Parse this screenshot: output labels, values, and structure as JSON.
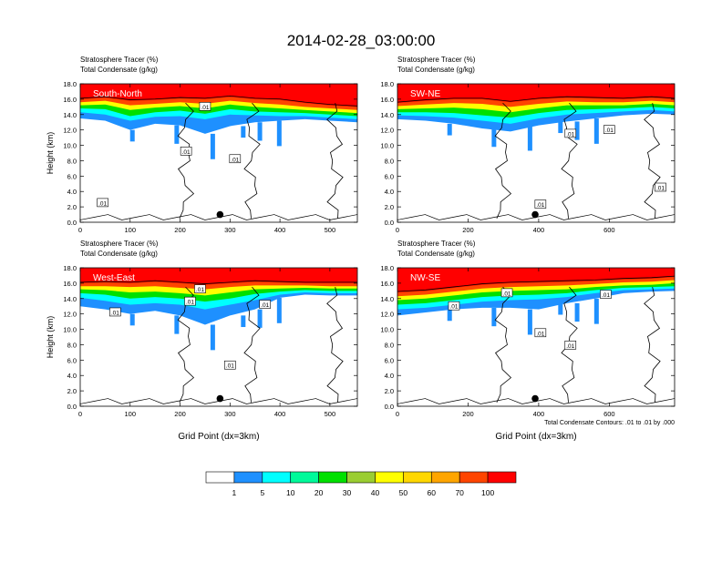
{
  "title": "2014-02-28_03:00:00",
  "colors": {
    "palette": [
      "#ffffff",
      "#1e90ff",
      "#00ffff",
      "#00fa9a",
      "#00e000",
      "#9acd32",
      "#ffff00",
      "#ffd700",
      "#ffa500",
      "#ff4500",
      "#ff0000"
    ],
    "contour": "#000000"
  },
  "legend": {
    "labels": [
      "1",
      "5",
      "10",
      "20",
      "30",
      "40",
      "50",
      "60",
      "70",
      "100"
    ]
  },
  "chart_data": [
    {
      "type": "heatmap",
      "name": "South-North",
      "line1": "Stratosphere Tracer   (%)",
      "line2": "Total Condensate   (g/kg)",
      "ylabel": "Height (km)",
      "xlabel": "",
      "ylim": [
        0,
        18
      ],
      "xlim": [
        0,
        555
      ],
      "yticks": [
        "0.0",
        "2.0",
        "4.0",
        "6.0",
        "8.0",
        "10.0",
        "12.0",
        "14.0",
        "16.0",
        "18.0"
      ],
      "yvals": [
        0,
        2,
        4,
        6,
        8,
        10,
        12,
        14,
        16,
        18
      ],
      "xticks": [
        "0",
        "100",
        "200",
        "300",
        "400",
        "500"
      ],
      "xvals": [
        0,
        100,
        200,
        300,
        400,
        500
      ],
      "marker_x": 280,
      "marker_y": 1.0,
      "contour_labels": [
        {
          "text": ".01",
          "x": 45,
          "y": 2.5
        },
        {
          "text": ".01",
          "x": 212,
          "y": 9.2
        },
        {
          "text": ".01",
          "x": 310,
          "y": 8.2
        },
        {
          "text": ".01",
          "x": 250,
          "y": 15.0
        }
      ],
      "bands": {
        "x": [
          0,
          50,
          100,
          150,
          200,
          250,
          300,
          350,
          400,
          450,
          500,
          555
        ],
        "red": [
          16.0,
          16.2,
          15.8,
          15.9,
          16.1,
          16.0,
          16.3,
          16.0,
          15.9,
          15.5,
          15.2,
          15.0
        ],
        "orange": [
          15.6,
          15.8,
          15.2,
          15.4,
          15.6,
          15.4,
          15.8,
          15.5,
          15.3,
          15.0,
          14.8,
          14.6
        ],
        "yellow": [
          15.2,
          15.3,
          14.6,
          14.9,
          15.1,
          14.8,
          15.3,
          15.0,
          14.8,
          14.6,
          14.4,
          14.2
        ],
        "green": [
          14.8,
          14.7,
          13.8,
          14.3,
          14.5,
          14.1,
          14.7,
          14.4,
          14.3,
          14.2,
          14.0,
          13.8
        ],
        "cyan": [
          14.3,
          14.0,
          13.2,
          13.7,
          13.8,
          13.4,
          14.0,
          13.9,
          13.8,
          13.8,
          13.6,
          13.4
        ],
        "blue": [
          13.5,
          13.2,
          12.0,
          12.8,
          12.6,
          11.5,
          12.5,
          13.0,
          13.2,
          13.4,
          13.2,
          13.0
        ]
      }
    },
    {
      "type": "heatmap",
      "name": "SW-NE",
      "line1": "Stratosphere Tracer   (%)",
      "line2": "Total Condensate   (g/kg)",
      "ylabel": "",
      "xlabel": "",
      "ylim": [
        0,
        18
      ],
      "xlim": [
        0,
        785
      ],
      "yticks": [
        "0.0",
        "2.0",
        "4.0",
        "6.0",
        "8.0",
        "10.0",
        "12.0",
        "14.0",
        "16.0",
        "18.0"
      ],
      "yvals": [
        0,
        2,
        4,
        6,
        8,
        10,
        12,
        14,
        16,
        18
      ],
      "xticks": [
        "0",
        "200",
        "400",
        "600"
      ],
      "xvals": [
        0,
        200,
        400,
        600
      ],
      "marker_x": 390,
      "marker_y": 1.0,
      "contour_labels": [
        {
          "text": ".01",
          "x": 405,
          "y": 2.3
        },
        {
          "text": ".01",
          "x": 490,
          "y": 11.5
        },
        {
          "text": ".01",
          "x": 600,
          "y": 12.0
        },
        {
          "text": ".01",
          "x": 745,
          "y": 4.5
        }
      ],
      "bands": {
        "x": [
          0,
          80,
          160,
          240,
          320,
          400,
          480,
          560,
          640,
          720,
          785
        ],
        "red": [
          15.5,
          15.8,
          16.0,
          16.0,
          15.6,
          16.0,
          16.2,
          16.1,
          16.0,
          16.2,
          16.0
        ],
        "orange": [
          15.1,
          15.3,
          15.5,
          15.4,
          15.0,
          15.4,
          15.7,
          15.6,
          15.6,
          15.8,
          15.6
        ],
        "yellow": [
          14.7,
          14.8,
          14.9,
          14.7,
          14.3,
          14.8,
          15.2,
          15.2,
          15.2,
          15.4,
          15.2
        ],
        "green": [
          14.3,
          14.3,
          14.2,
          13.9,
          13.6,
          14.2,
          14.6,
          14.7,
          14.8,
          15.0,
          14.8
        ],
        "cyan": [
          13.9,
          13.8,
          13.6,
          13.2,
          12.8,
          13.5,
          14.0,
          14.2,
          14.4,
          14.6,
          14.4
        ],
        "blue": [
          13.4,
          13.2,
          12.8,
          12.2,
          11.8,
          12.6,
          13.1,
          13.5,
          13.9,
          14.1,
          14.0
        ]
      }
    },
    {
      "type": "heatmap",
      "name": "West-East",
      "line1": "Stratosphere Tracer   (%)",
      "line2": "Total Condensate   (g/kg)",
      "ylabel": "Height (km)",
      "xlabel": "Grid Point (dx=3km)",
      "ylim": [
        0,
        18
      ],
      "xlim": [
        0,
        555
      ],
      "yticks": [
        "0.0",
        "2.0",
        "4.0",
        "6.0",
        "8.0",
        "10.0",
        "12.0",
        "14.0",
        "16.0",
        "18.0"
      ],
      "yvals": [
        0,
        2,
        4,
        6,
        8,
        10,
        12,
        14,
        16,
        18
      ],
      "xticks": [
        "0",
        "100",
        "200",
        "300",
        "400",
        "500"
      ],
      "xvals": [
        0,
        100,
        200,
        300,
        400,
        500
      ],
      "marker_x": 280,
      "marker_y": 1.0,
      "contour_labels": [
        {
          "text": ".01",
          "x": 70,
          "y": 12.2
        },
        {
          "text": ".01",
          "x": 220,
          "y": 13.6
        },
        {
          "text": ".01",
          "x": 240,
          "y": 15.2
        },
        {
          "text": ".01",
          "x": 370,
          "y": 13.2
        },
        {
          "text": ".01",
          "x": 300,
          "y": 5.3
        }
      ],
      "bands": {
        "x": [
          0,
          50,
          100,
          150,
          200,
          250,
          300,
          350,
          400,
          450,
          500,
          555
        ],
        "red": [
          16.0,
          16.1,
          16.0,
          16.2,
          16.0,
          15.8,
          16.0,
          16.2,
          16.1,
          16.0,
          16.0,
          16.0
        ],
        "orange": [
          15.6,
          15.6,
          15.5,
          15.6,
          15.4,
          15.2,
          15.5,
          15.7,
          15.7,
          15.7,
          15.6,
          15.6
        ],
        "yellow": [
          15.2,
          15.1,
          14.8,
          14.9,
          14.7,
          14.4,
          14.8,
          15.2,
          15.3,
          15.4,
          15.3,
          15.3
        ],
        "green": [
          14.7,
          14.5,
          14.0,
          14.2,
          14.0,
          13.6,
          14.0,
          14.6,
          14.9,
          15.1,
          15.0,
          15.0
        ],
        "cyan": [
          14.1,
          13.7,
          13.2,
          13.4,
          13.2,
          12.6,
          13.2,
          13.8,
          14.5,
          14.8,
          14.7,
          14.7
        ],
        "blue": [
          13.0,
          12.6,
          12.0,
          12.4,
          11.8,
          10.6,
          11.8,
          12.6,
          14.1,
          14.5,
          14.4,
          14.4
        ]
      }
    },
    {
      "type": "heatmap",
      "name": "NW-SE",
      "line1": "Stratosphere Tracer   (%)",
      "line2": "Total Condensate   (g/kg)",
      "ylabel": "",
      "xlabel": "Grid Point (dx=3km)",
      "ylim": [
        0,
        18
      ],
      "xlim": [
        0,
        785
      ],
      "yticks": [
        "0.0",
        "2.0",
        "4.0",
        "6.0",
        "8.0",
        "10.0",
        "12.0",
        "14.0",
        "16.0",
        "18.0"
      ],
      "yvals": [
        0,
        2,
        4,
        6,
        8,
        10,
        12,
        14,
        16,
        18
      ],
      "xticks": [
        "0",
        "200",
        "400",
        "600"
      ],
      "xvals": [
        0,
        200,
        400,
        600
      ],
      "marker_x": 390,
      "marker_y": 1.0,
      "note": "Total Condensate Contours: .01 to .01 by .000",
      "contour_labels": [
        {
          "text": ".01",
          "x": 160,
          "y": 13.0
        },
        {
          "text": ".01",
          "x": 310,
          "y": 14.7
        },
        {
          "text": ".01",
          "x": 405,
          "y": 9.5
        },
        {
          "text": ".01",
          "x": 490,
          "y": 7.9
        },
        {
          "text": ".01",
          "x": 590,
          "y": 14.5
        }
      ],
      "bands": {
        "x": [
          0,
          80,
          160,
          240,
          320,
          400,
          480,
          560,
          640,
          720,
          785
        ],
        "red": [
          14.8,
          15.0,
          15.4,
          15.8,
          16.0,
          16.1,
          16.2,
          16.3,
          16.5,
          16.6,
          16.8
        ],
        "orange": [
          14.3,
          14.5,
          14.9,
          15.3,
          15.5,
          15.6,
          15.7,
          15.9,
          16.1,
          16.2,
          16.4
        ],
        "yellow": [
          13.8,
          14.0,
          14.4,
          14.8,
          15.0,
          15.1,
          15.2,
          15.5,
          15.7,
          15.8,
          16.0
        ],
        "green": [
          13.2,
          13.4,
          13.8,
          14.2,
          14.4,
          14.5,
          14.7,
          15.1,
          15.4,
          15.5,
          15.6
        ],
        "cyan": [
          12.6,
          12.8,
          13.2,
          13.6,
          13.8,
          13.9,
          14.2,
          14.7,
          15.1,
          15.2,
          15.3
        ],
        "blue": [
          11.8,
          12.2,
          12.6,
          12.8,
          12.8,
          12.6,
          13.4,
          14.0,
          14.7,
          14.9,
          15.0
        ]
      }
    }
  ]
}
